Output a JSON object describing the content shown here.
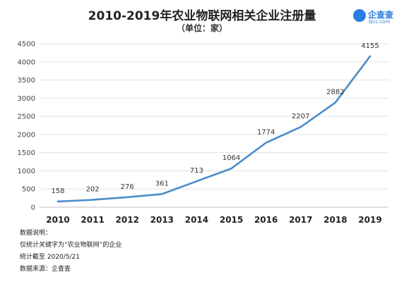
{
  "chart_data": {
    "type": "line",
    "title": "2010-2019年农业物联网相关企业注册量",
    "subtitle": "（单位：家）",
    "categories": [
      "2010",
      "2011",
      "2012",
      "2013",
      "2014",
      "2015",
      "2016",
      "2017",
      "2018",
      "2019"
    ],
    "series": [
      {
        "values": [
          158,
          202,
          276,
          361,
          713,
          1064,
          1774,
          2207,
          2882,
          4155
        ]
      }
    ],
    "ylim": [
      0,
      4500
    ],
    "yticks": [
      0,
      500,
      1000,
      1500,
      2000,
      2500,
      3000,
      3500,
      4000,
      4500
    ],
    "grid": true,
    "line_color": "#4a8cc9"
  },
  "logo": {
    "name": "企查查",
    "sub": "Qcc.com"
  },
  "notes": {
    "header": "数据说明：",
    "line1": "仅统计关键字为“农业物联网”的企业",
    "line2": "统计截至 2020/5/21",
    "line3": "数据来源：企查查"
  }
}
